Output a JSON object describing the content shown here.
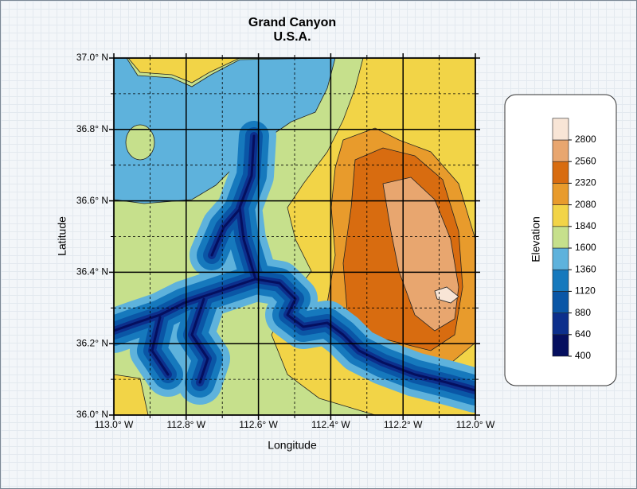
{
  "chart_data": {
    "type": "contour",
    "title": "Grand Canyon",
    "subtitle": "U.S.A.",
    "x_label": "Longitude",
    "y_label": "Latitude",
    "colorbar_label": "Elevation",
    "xlim": [
      113.0,
      112.0
    ],
    "ylim": [
      36.0,
      37.0
    ],
    "xticks": [
      {
        "value": 113.0,
        "label": "113.0° W"
      },
      {
        "value": 112.8,
        "label": "112.8° W"
      },
      {
        "value": 112.6,
        "label": "112.6° W"
      },
      {
        "value": 112.4,
        "label": "112.4° W"
      },
      {
        "value": 112.2,
        "label": "112.2° W"
      },
      {
        "value": 112.0,
        "label": "112.0° W"
      }
    ],
    "yticks": [
      {
        "value": 36.0,
        "label": "36.0° N"
      },
      {
        "value": 36.2,
        "label": "36.2° N"
      },
      {
        "value": 36.4,
        "label": "36.4° N"
      },
      {
        "value": 36.6,
        "label": "36.6° N"
      },
      {
        "value": 36.8,
        "label": "36.8° N"
      },
      {
        "value": 37.0,
        "label": "37.0° N"
      }
    ],
    "x_minor_ticks": [
      112.9,
      112.7,
      112.5,
      112.3,
      112.1
    ],
    "y_minor_ticks": [
      36.1,
      36.3,
      36.5,
      36.7,
      36.9
    ],
    "grid": true,
    "levels": [
      400,
      640,
      880,
      1120,
      1360,
      1600,
      1840,
      2080,
      2320,
      2560,
      2800
    ],
    "colors": [
      "#050f5f",
      "#0c2f8c",
      "#0a56a6",
      "#1679bd",
      "#5eb2dc",
      "#c6e08c",
      "#f2d447",
      "#e89b2c",
      "#d86c10",
      "#e8a66f",
      "#f8e5d6"
    ]
  }
}
